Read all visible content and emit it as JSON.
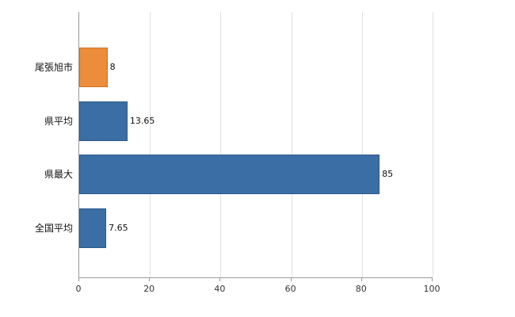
{
  "chart_data": {
    "type": "bar",
    "orientation": "horizontal",
    "title": "",
    "xlabel": "",
    "ylabel": "",
    "categories": [
      "尾張旭市",
      "県平均",
      "県最大",
      "全国平均"
    ],
    "values": [
      8,
      13.65,
      85,
      7.65
    ],
    "value_labels": [
      "8",
      "13.65",
      "85",
      "7.65"
    ],
    "bar_fill_colors": [
      "#ec8d3c",
      "#3a6ea5",
      "#3a6ea5",
      "#3a6ea5"
    ],
    "bar_border_colors": [
      "#c9731f",
      "#2e5a86",
      "#2e5a86",
      "#2e5a86"
    ],
    "xlim": [
      0,
      100
    ],
    "x_ticks": [
      0,
      20,
      40,
      60,
      80,
      100
    ],
    "x_tick_labels": [
      "0",
      "20",
      "40",
      "60",
      "80",
      "100"
    ],
    "grid": "vertical",
    "legend": "none"
  },
  "colors": {
    "highlight_bar": "#ec8d3c",
    "default_bar": "#3a6ea5",
    "gridline": "#e1e1e1",
    "axis": "#9a9a9a",
    "label_text": "#111111"
  }
}
